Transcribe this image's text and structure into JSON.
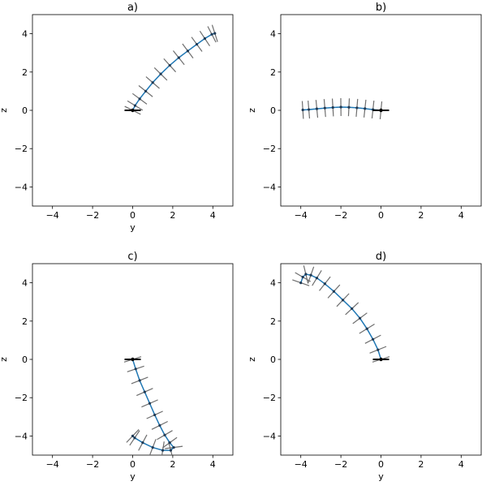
{
  "chart_data": [
    {
      "type": "line",
      "title": "a)",
      "xlabel": "y",
      "ylabel": "z",
      "xlim": [
        -5,
        5
      ],
      "ylim": [
        -5,
        5
      ],
      "xticks": [
        -4,
        -2,
        0,
        2,
        4
      ],
      "yticks": [
        -4,
        -2,
        0,
        2,
        4
      ],
      "grid": false,
      "series": [
        {
          "color": "#1f77b4",
          "x": [
            0.0,
            0.12,
            0.35,
            0.65,
            1.0,
            1.4,
            1.85,
            2.3,
            2.75,
            3.2,
            3.6,
            3.95,
            4.1
          ],
          "y": [
            0.0,
            0.25,
            0.6,
            1.0,
            1.45,
            1.9,
            2.35,
            2.75,
            3.1,
            3.45,
            3.75,
            3.97,
            4.02
          ]
        }
      ]
    },
    {
      "type": "line",
      "title": "b)",
      "xlabel": "",
      "ylabel": "z",
      "xlim": [
        -5,
        5
      ],
      "ylim": [
        -5,
        5
      ],
      "xticks": [
        -4,
        -2,
        0,
        2,
        4
      ],
      "yticks": [
        -4,
        -2,
        0,
        2,
        4
      ],
      "grid": false,
      "series": [
        {
          "color": "#1f77b4",
          "x": [
            0.0,
            -0.4,
            -0.8,
            -1.2,
            -1.6,
            -2.0,
            -2.4,
            -2.8,
            -3.2,
            -3.6,
            -3.9
          ],
          "y": [
            0.0,
            0.04,
            0.09,
            0.13,
            0.16,
            0.17,
            0.15,
            0.12,
            0.08,
            0.04,
            0.02
          ]
        }
      ]
    },
    {
      "type": "line",
      "title": "c)",
      "xlabel": "y",
      "ylabel": "z",
      "xlim": [
        -5,
        5
      ],
      "ylim": [
        -5,
        5
      ],
      "xticks": [
        -4,
        -2,
        0,
        2,
        4
      ],
      "yticks": [
        -4,
        -2,
        0,
        2,
        4
      ],
      "grid": false,
      "series": [
        {
          "color": "#1f77b4",
          "x": [
            0.0,
            0.15,
            0.35,
            0.6,
            0.85,
            1.1,
            1.35,
            1.6,
            1.85,
            2.05,
            1.9,
            1.5,
            1.0,
            0.5,
            0.1,
            0.0
          ],
          "y": [
            0.0,
            -0.5,
            -1.1,
            -1.7,
            -2.3,
            -2.9,
            -3.45,
            -3.95,
            -4.35,
            -4.6,
            -4.75,
            -4.75,
            -4.6,
            -4.35,
            -4.1,
            -4.0
          ]
        }
      ]
    },
    {
      "type": "line",
      "title": "d)",
      "xlabel": "y",
      "ylabel": "z",
      "xlim": [
        -5,
        5
      ],
      "ylim": [
        -5,
        5
      ],
      "xticks": [
        -4,
        -2,
        0,
        2,
        4
      ],
      "yticks": [
        -4,
        -2,
        0,
        2,
        4
      ],
      "grid": false,
      "series": [
        {
          "color": "#1f77b4",
          "x": [
            0.0,
            -0.15,
            -0.4,
            -0.7,
            -1.05,
            -1.45,
            -1.9,
            -2.35,
            -2.8,
            -3.2,
            -3.5,
            -3.75,
            -3.9,
            -4.0
          ],
          "y": [
            0.0,
            0.5,
            1.05,
            1.6,
            2.15,
            2.65,
            3.1,
            3.55,
            3.95,
            4.25,
            4.4,
            4.45,
            4.3,
            4.0
          ]
        }
      ]
    }
  ]
}
